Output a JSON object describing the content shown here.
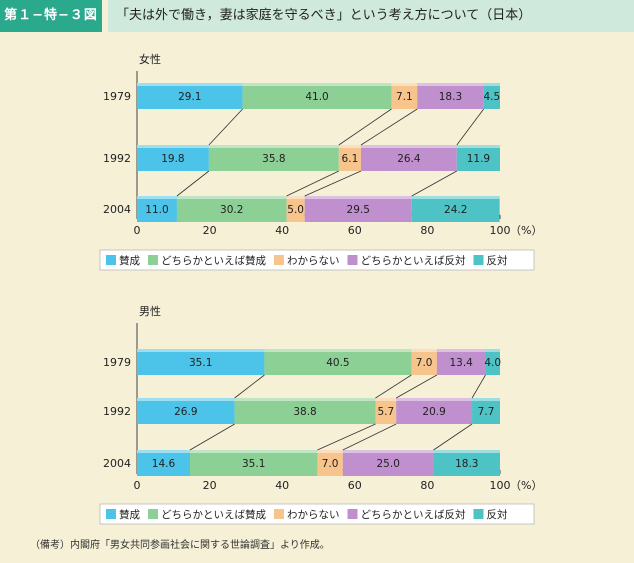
{
  "header": {
    "figure_number": "第１−特−３図",
    "title": "「夫は外で働き，妻は家庭を守るべき」という考え方について（日本）"
  },
  "colors": {
    "header_tag": "#2aa98d",
    "header_bar": "#cfe9dc",
    "background": "#f5f0d6",
    "series": [
      "#4cc3e8",
      "#8dd095",
      "#f7c48c",
      "#bf8fce",
      "#4dc3c6"
    ]
  },
  "chart_data": [
    {
      "type": "bar",
      "orientation": "horizontal",
      "stacked": true,
      "title": "女性",
      "categories": [
        "1979",
        "1992",
        "2004"
      ],
      "series": [
        {
          "name": "賛成",
          "values": [
            29.1,
            19.8,
            11.0
          ]
        },
        {
          "name": "どちらかといえば賛成",
          "values": [
            41.0,
            35.8,
            30.2
          ]
        },
        {
          "name": "わからない",
          "values": [
            7.1,
            6.1,
            5.0
          ]
        },
        {
          "name": "どちらかといえば反対",
          "values": [
            18.3,
            26.4,
            29.5
          ]
        },
        {
          "name": "反対",
          "values": [
            4.5,
            11.9,
            24.2
          ]
        }
      ],
      "xlim": [
        0,
        100
      ],
      "xticks": [
        "0",
        "20",
        "40",
        "60",
        "80",
        "100"
      ],
      "unit": "（%）",
      "legend_position": "bottom"
    },
    {
      "type": "bar",
      "orientation": "horizontal",
      "stacked": true,
      "title": "男性",
      "categories": [
        "1979",
        "1992",
        "2004"
      ],
      "series": [
        {
          "name": "賛成",
          "values": [
            35.1,
            26.9,
            14.6
          ]
        },
        {
          "name": "どちらかといえば賛成",
          "values": [
            40.5,
            38.8,
            35.1
          ]
        },
        {
          "name": "わからない",
          "values": [
            7.0,
            5.7,
            7.0
          ]
        },
        {
          "name": "どちらかといえば反対",
          "values": [
            13.4,
            20.9,
            25.0
          ]
        },
        {
          "name": "反対",
          "values": [
            4.0,
            7.7,
            18.3
          ]
        }
      ],
      "xlim": [
        0,
        100
      ],
      "xticks": [
        "0",
        "20",
        "40",
        "60",
        "80",
        "100"
      ],
      "unit": "（%）",
      "legend_position": "bottom"
    }
  ],
  "note": "（備考）内閣府「男女共同参画社会に関する世論調査」より作成。"
}
